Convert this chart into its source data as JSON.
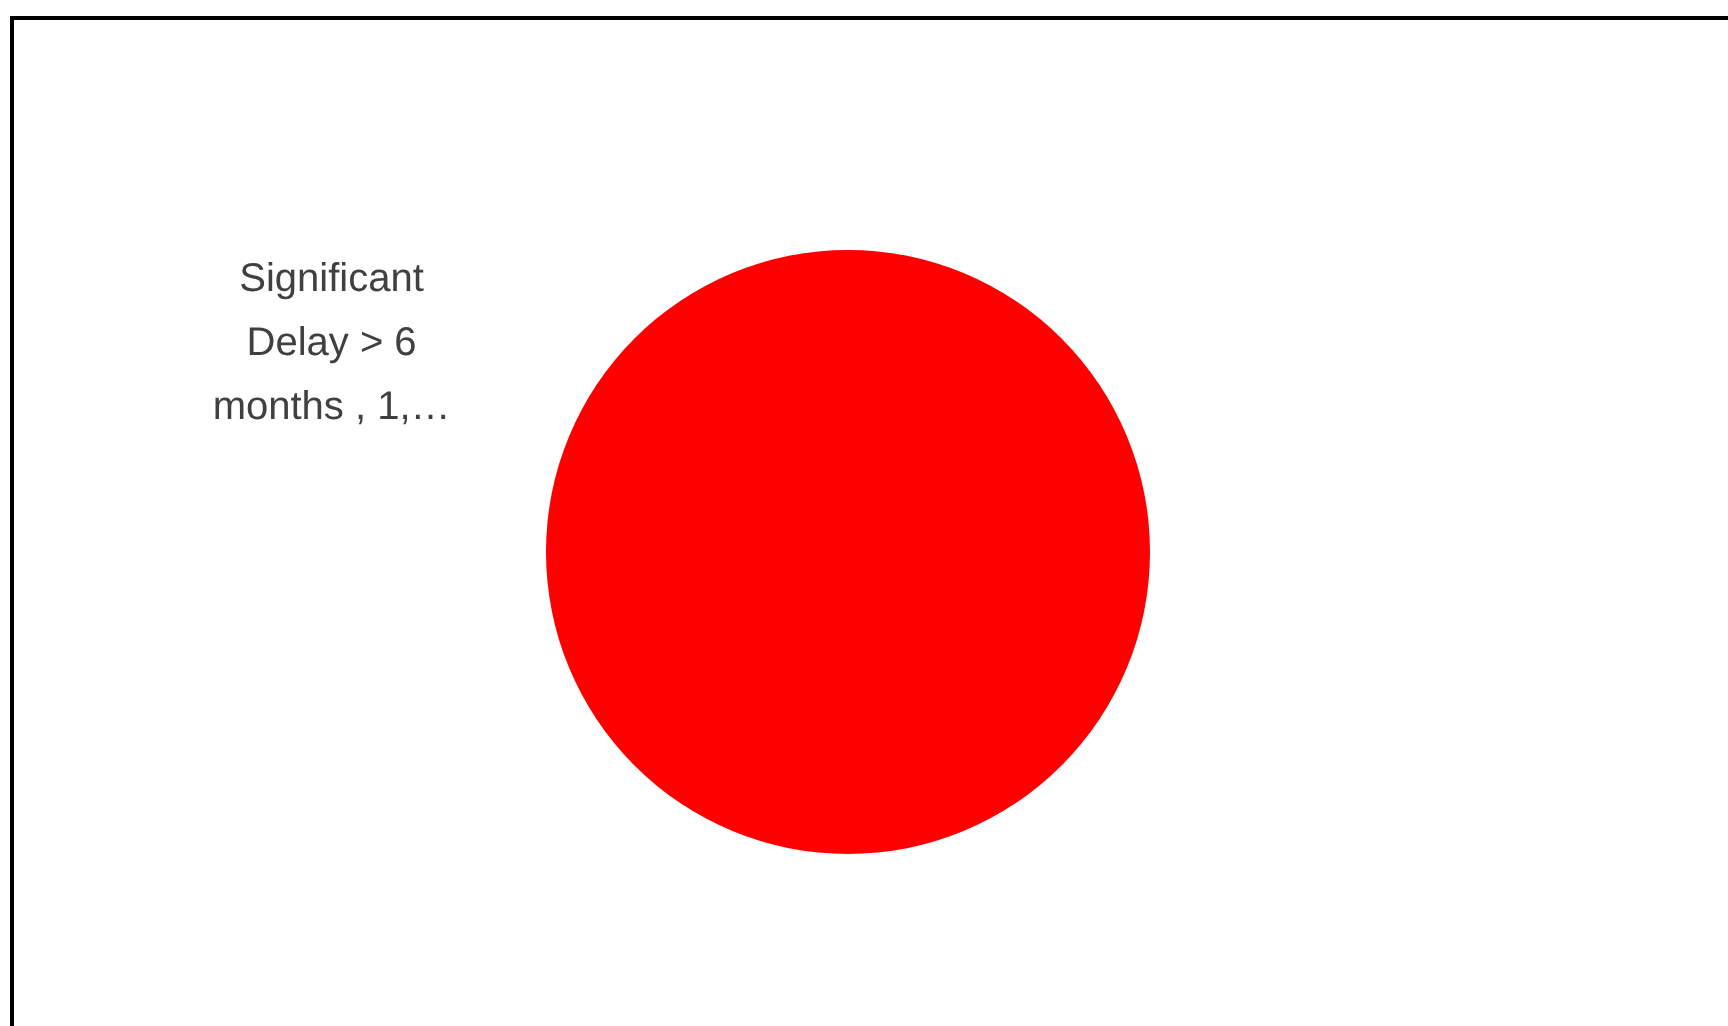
{
  "chart_data": {
    "type": "pie",
    "categories": [
      "Significant Delay > 6 months , 1,…"
    ],
    "values": [
      100
    ],
    "colors": [
      "#ff0000"
    ]
  }
}
